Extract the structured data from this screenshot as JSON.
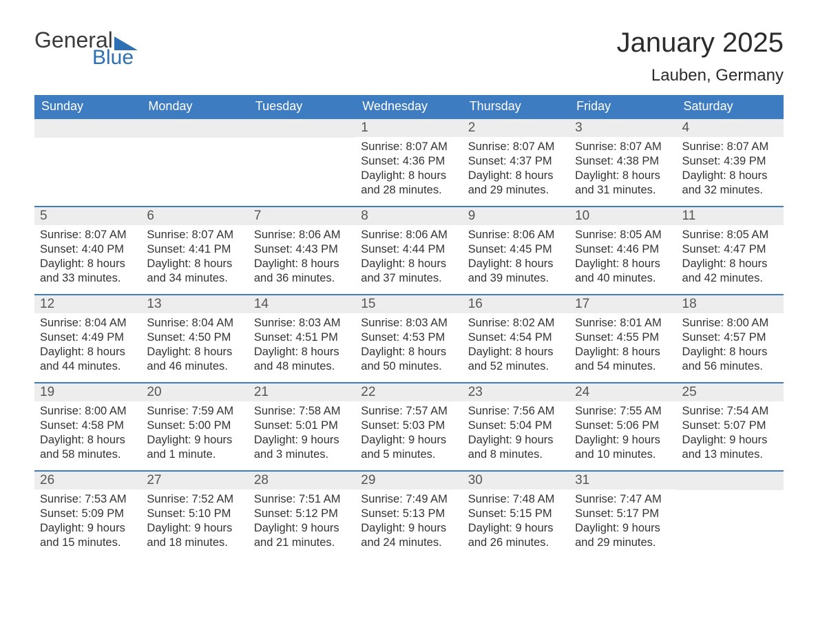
{
  "logo": {
    "word1": "General",
    "word2": "Blue"
  },
  "title": "January 2025",
  "location": "Lauben, Germany",
  "colors": {
    "header_bg": "#3d7cc0",
    "header_text": "#ffffff",
    "day_num_bg": "#ededed",
    "day_num_text": "#555555",
    "body_text": "#333333",
    "rule": "#3d7cc0",
    "logo_accent": "#2c6fb3",
    "page_bg": "#ffffff"
  },
  "typography": {
    "title_fontsize": 40,
    "location_fontsize": 24,
    "weekday_fontsize": 18,
    "daynum_fontsize": 19,
    "body_fontsize": 16.5,
    "font_family": "Arial"
  },
  "weekdays": [
    "Sunday",
    "Monday",
    "Tuesday",
    "Wednesday",
    "Thursday",
    "Friday",
    "Saturday"
  ],
  "weeks": [
    [
      {
        "n": "",
        "sunrise": "",
        "sunset": "",
        "daylight1": "",
        "daylight2": ""
      },
      {
        "n": "",
        "sunrise": "",
        "sunset": "",
        "daylight1": "",
        "daylight2": ""
      },
      {
        "n": "",
        "sunrise": "",
        "sunset": "",
        "daylight1": "",
        "daylight2": ""
      },
      {
        "n": "1",
        "sunrise": "Sunrise: 8:07 AM",
        "sunset": "Sunset: 4:36 PM",
        "daylight1": "Daylight: 8 hours",
        "daylight2": "and 28 minutes."
      },
      {
        "n": "2",
        "sunrise": "Sunrise: 8:07 AM",
        "sunset": "Sunset: 4:37 PM",
        "daylight1": "Daylight: 8 hours",
        "daylight2": "and 29 minutes."
      },
      {
        "n": "3",
        "sunrise": "Sunrise: 8:07 AM",
        "sunset": "Sunset: 4:38 PM",
        "daylight1": "Daylight: 8 hours",
        "daylight2": "and 31 minutes."
      },
      {
        "n": "4",
        "sunrise": "Sunrise: 8:07 AM",
        "sunset": "Sunset: 4:39 PM",
        "daylight1": "Daylight: 8 hours",
        "daylight2": "and 32 minutes."
      }
    ],
    [
      {
        "n": "5",
        "sunrise": "Sunrise: 8:07 AM",
        "sunset": "Sunset: 4:40 PM",
        "daylight1": "Daylight: 8 hours",
        "daylight2": "and 33 minutes."
      },
      {
        "n": "6",
        "sunrise": "Sunrise: 8:07 AM",
        "sunset": "Sunset: 4:41 PM",
        "daylight1": "Daylight: 8 hours",
        "daylight2": "and 34 minutes."
      },
      {
        "n": "7",
        "sunrise": "Sunrise: 8:06 AM",
        "sunset": "Sunset: 4:43 PM",
        "daylight1": "Daylight: 8 hours",
        "daylight2": "and 36 minutes."
      },
      {
        "n": "8",
        "sunrise": "Sunrise: 8:06 AM",
        "sunset": "Sunset: 4:44 PM",
        "daylight1": "Daylight: 8 hours",
        "daylight2": "and 37 minutes."
      },
      {
        "n": "9",
        "sunrise": "Sunrise: 8:06 AM",
        "sunset": "Sunset: 4:45 PM",
        "daylight1": "Daylight: 8 hours",
        "daylight2": "and 39 minutes."
      },
      {
        "n": "10",
        "sunrise": "Sunrise: 8:05 AM",
        "sunset": "Sunset: 4:46 PM",
        "daylight1": "Daylight: 8 hours",
        "daylight2": "and 40 minutes."
      },
      {
        "n": "11",
        "sunrise": "Sunrise: 8:05 AM",
        "sunset": "Sunset: 4:47 PM",
        "daylight1": "Daylight: 8 hours",
        "daylight2": "and 42 minutes."
      }
    ],
    [
      {
        "n": "12",
        "sunrise": "Sunrise: 8:04 AM",
        "sunset": "Sunset: 4:49 PM",
        "daylight1": "Daylight: 8 hours",
        "daylight2": "and 44 minutes."
      },
      {
        "n": "13",
        "sunrise": "Sunrise: 8:04 AM",
        "sunset": "Sunset: 4:50 PM",
        "daylight1": "Daylight: 8 hours",
        "daylight2": "and 46 minutes."
      },
      {
        "n": "14",
        "sunrise": "Sunrise: 8:03 AM",
        "sunset": "Sunset: 4:51 PM",
        "daylight1": "Daylight: 8 hours",
        "daylight2": "and 48 minutes."
      },
      {
        "n": "15",
        "sunrise": "Sunrise: 8:03 AM",
        "sunset": "Sunset: 4:53 PM",
        "daylight1": "Daylight: 8 hours",
        "daylight2": "and 50 minutes."
      },
      {
        "n": "16",
        "sunrise": "Sunrise: 8:02 AM",
        "sunset": "Sunset: 4:54 PM",
        "daylight1": "Daylight: 8 hours",
        "daylight2": "and 52 minutes."
      },
      {
        "n": "17",
        "sunrise": "Sunrise: 8:01 AM",
        "sunset": "Sunset: 4:55 PM",
        "daylight1": "Daylight: 8 hours",
        "daylight2": "and 54 minutes."
      },
      {
        "n": "18",
        "sunrise": "Sunrise: 8:00 AM",
        "sunset": "Sunset: 4:57 PM",
        "daylight1": "Daylight: 8 hours",
        "daylight2": "and 56 minutes."
      }
    ],
    [
      {
        "n": "19",
        "sunrise": "Sunrise: 8:00 AM",
        "sunset": "Sunset: 4:58 PM",
        "daylight1": "Daylight: 8 hours",
        "daylight2": "and 58 minutes."
      },
      {
        "n": "20",
        "sunrise": "Sunrise: 7:59 AM",
        "sunset": "Sunset: 5:00 PM",
        "daylight1": "Daylight: 9 hours",
        "daylight2": "and 1 minute."
      },
      {
        "n": "21",
        "sunrise": "Sunrise: 7:58 AM",
        "sunset": "Sunset: 5:01 PM",
        "daylight1": "Daylight: 9 hours",
        "daylight2": "and 3 minutes."
      },
      {
        "n": "22",
        "sunrise": "Sunrise: 7:57 AM",
        "sunset": "Sunset: 5:03 PM",
        "daylight1": "Daylight: 9 hours",
        "daylight2": "and 5 minutes."
      },
      {
        "n": "23",
        "sunrise": "Sunrise: 7:56 AM",
        "sunset": "Sunset: 5:04 PM",
        "daylight1": "Daylight: 9 hours",
        "daylight2": "and 8 minutes."
      },
      {
        "n": "24",
        "sunrise": "Sunrise: 7:55 AM",
        "sunset": "Sunset: 5:06 PM",
        "daylight1": "Daylight: 9 hours",
        "daylight2": "and 10 minutes."
      },
      {
        "n": "25",
        "sunrise": "Sunrise: 7:54 AM",
        "sunset": "Sunset: 5:07 PM",
        "daylight1": "Daylight: 9 hours",
        "daylight2": "and 13 minutes."
      }
    ],
    [
      {
        "n": "26",
        "sunrise": "Sunrise: 7:53 AM",
        "sunset": "Sunset: 5:09 PM",
        "daylight1": "Daylight: 9 hours",
        "daylight2": "and 15 minutes."
      },
      {
        "n": "27",
        "sunrise": "Sunrise: 7:52 AM",
        "sunset": "Sunset: 5:10 PM",
        "daylight1": "Daylight: 9 hours",
        "daylight2": "and 18 minutes."
      },
      {
        "n": "28",
        "sunrise": "Sunrise: 7:51 AM",
        "sunset": "Sunset: 5:12 PM",
        "daylight1": "Daylight: 9 hours",
        "daylight2": "and 21 minutes."
      },
      {
        "n": "29",
        "sunrise": "Sunrise: 7:49 AM",
        "sunset": "Sunset: 5:13 PM",
        "daylight1": "Daylight: 9 hours",
        "daylight2": "and 24 minutes."
      },
      {
        "n": "30",
        "sunrise": "Sunrise: 7:48 AM",
        "sunset": "Sunset: 5:15 PM",
        "daylight1": "Daylight: 9 hours",
        "daylight2": "and 26 minutes."
      },
      {
        "n": "31",
        "sunrise": "Sunrise: 7:47 AM",
        "sunset": "Sunset: 5:17 PM",
        "daylight1": "Daylight: 9 hours",
        "daylight2": "and 29 minutes."
      },
      {
        "n": "",
        "sunrise": "",
        "sunset": "",
        "daylight1": "",
        "daylight2": ""
      }
    ]
  ]
}
